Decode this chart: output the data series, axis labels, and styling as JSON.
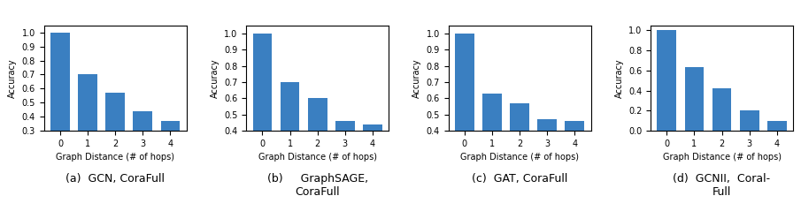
{
  "subplots": [
    {
      "label": "(a)  GCN, CoraFull",
      "values": [
        1.0,
        0.7,
        0.57,
        0.44,
        0.37
      ],
      "ylim": [
        0.3,
        1.05
      ],
      "yticks": [
        0.3,
        0.4,
        0.5,
        0.6,
        0.7,
        0.8,
        0.9,
        1.0
      ]
    },
    {
      "label": "(b)     GraphSAGE,\nCoraFull",
      "values": [
        1.0,
        0.7,
        0.6,
        0.46,
        0.44
      ],
      "ylim": [
        0.4,
        1.05
      ],
      "yticks": [
        0.4,
        0.5,
        0.6,
        0.7,
        0.8,
        0.9,
        1.0
      ]
    },
    {
      "label": "(c)  GAT, CoraFull",
      "values": [
        1.0,
        0.63,
        0.57,
        0.47,
        0.46
      ],
      "ylim": [
        0.4,
        1.05
      ],
      "yticks": [
        0.4,
        0.5,
        0.6,
        0.7,
        0.8,
        0.9,
        1.0
      ]
    },
    {
      "label": "(d)  GCNII,  Coral-\nFull",
      "values": [
        1.0,
        0.63,
        0.42,
        0.2,
        0.1
      ],
      "ylim": [
        0.0,
        1.05
      ],
      "yticks": [
        0.0,
        0.2,
        0.4,
        0.6,
        0.8,
        1.0
      ]
    }
  ],
  "bar_color": "#3a7fc1",
  "xlabel": "Graph Distance (# of hops)",
  "ylabel": "Accuracy",
  "categories": [
    0,
    1,
    2,
    3,
    4
  ],
  "tick_fontsize": 7.0,
  "label_fontsize": 7.0,
  "caption_fontsize": 9.0
}
